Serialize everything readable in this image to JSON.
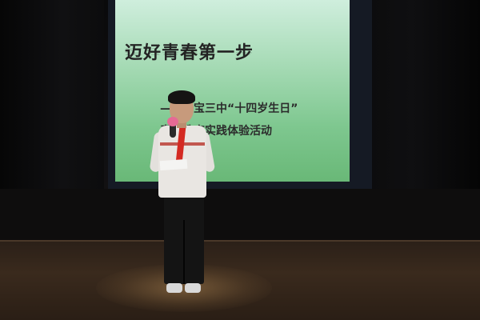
{
  "slide": {
    "title": "迈好青春第一步",
    "subtitle_line1": "——七宝三中“十四岁生日”",
    "subtitle_line2": "责任教育实践体验活动"
  },
  "colors": {
    "slide_background": "#a7dbb6",
    "scarf": "#d42a22",
    "microphone": "#e56a95",
    "stage_floor": "#3a2a1d"
  }
}
